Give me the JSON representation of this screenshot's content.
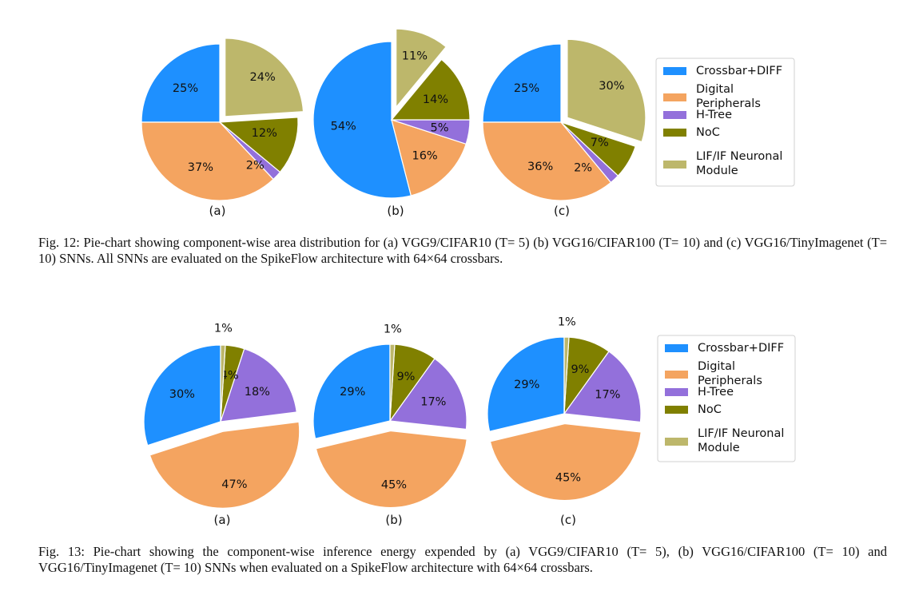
{
  "legend_entries": [
    "Crossbar+DIFF",
    "Digital Peripherals",
    "H-Tree",
    "NoC",
    "LIF/IF Neuronal Module"
  ],
  "legend_lines": [
    [
      "Crossbar+DIFF"
    ],
    [
      "Digital",
      "Peripherals"
    ],
    [
      "H-Tree"
    ],
    [
      "NoC"
    ],
    [
      "LIF/IF Neuronal",
      "Module"
    ]
  ],
  "colors": {
    "crossbar": "#1e90ff",
    "digital": "#f4a460",
    "htree": "#9370db",
    "noc": "#808000",
    "lif": "#bdb76b"
  },
  "chart_data": [
    {
      "type": "pie",
      "figure": "Fig. 12",
      "panel_label": "(a)",
      "categories": [
        "Crossbar+DIFF",
        "Digital Peripherals",
        "H-Tree",
        "NoC",
        "LIF/IF Neuronal Module"
      ],
      "values": [
        25,
        37,
        2,
        12,
        24
      ],
      "labels": [
        "25%",
        "37%",
        "2%",
        "12%",
        "24%"
      ],
      "exploded": "LIF/IF Neuronal Module"
    },
    {
      "type": "pie",
      "figure": "Fig. 12",
      "panel_label": "(b)",
      "categories": [
        "Crossbar+DIFF",
        "Digital Peripherals",
        "H-Tree",
        "NoC",
        "LIF/IF Neuronal Module"
      ],
      "values": [
        54,
        16,
        5,
        14,
        11
      ],
      "labels": [
        "54%",
        "16%",
        "5%",
        "14%",
        "11%"
      ],
      "exploded": "LIF/IF Neuronal Module"
    },
    {
      "type": "pie",
      "figure": "Fig. 12",
      "panel_label": "(c)",
      "categories": [
        "Crossbar+DIFF",
        "Digital Peripherals",
        "H-Tree",
        "NoC",
        "LIF/IF Neuronal Module"
      ],
      "values": [
        25,
        36,
        2,
        7,
        30
      ],
      "labels": [
        "25%",
        "36%",
        "2%",
        "7%",
        "30%"
      ],
      "exploded": "LIF/IF Neuronal Module"
    },
    {
      "type": "pie",
      "figure": "Fig. 13",
      "panel_label": "(a)",
      "categories": [
        "Crossbar+DIFF",
        "Digital Peripherals",
        "H-Tree",
        "NoC",
        "LIF/IF Neuronal Module"
      ],
      "values": [
        30,
        47,
        18,
        4,
        1
      ],
      "labels": [
        "30%",
        "47%",
        "18%",
        "4%",
        "1%"
      ],
      "exploded": "Digital Peripherals"
    },
    {
      "type": "pie",
      "figure": "Fig. 13",
      "panel_label": "(b)",
      "categories": [
        "Crossbar+DIFF",
        "Digital Peripherals",
        "H-Tree",
        "NoC",
        "LIF/IF Neuronal Module"
      ],
      "values": [
        29,
        45,
        17,
        9,
        1
      ],
      "labels": [
        "29%",
        "45%",
        "17%",
        "9%",
        "1%"
      ],
      "exploded": "Digital Peripherals"
    },
    {
      "type": "pie",
      "figure": "Fig. 13",
      "panel_label": "(c)",
      "categories": [
        "Crossbar+DIFF",
        "Digital Peripherals",
        "H-Tree",
        "NoC",
        "LIF/IF Neuronal Module"
      ],
      "values": [
        29,
        45,
        17,
        9,
        1
      ],
      "labels": [
        "29%",
        "45%",
        "17%",
        "9%",
        "1%"
      ],
      "exploded": "Digital Peripherals"
    }
  ],
  "captions": {
    "fig12": "Fig. 12: Pie-chart showing component-wise area distribution for (a) VGG9/CIFAR10 (T= 5) (b) VGG16/CIFAR100 (T= 10) and (c) VGG16/TinyImagenet (T= 10) SNNs. All SNNs are evaluated on the SpikeFlow architecture with 64×64 crossbars.",
    "fig13": "Fig. 13: Pie-chart showing the component-wise inference energy expended by (a) VGG9/CIFAR10 (T= 5), (b) VGG16/CIFAR100 (T= 10) and VGG16/TinyImagenet (T= 10) SNNs when evaluated on a SpikeFlow architecture with 64×64 crossbars."
  }
}
